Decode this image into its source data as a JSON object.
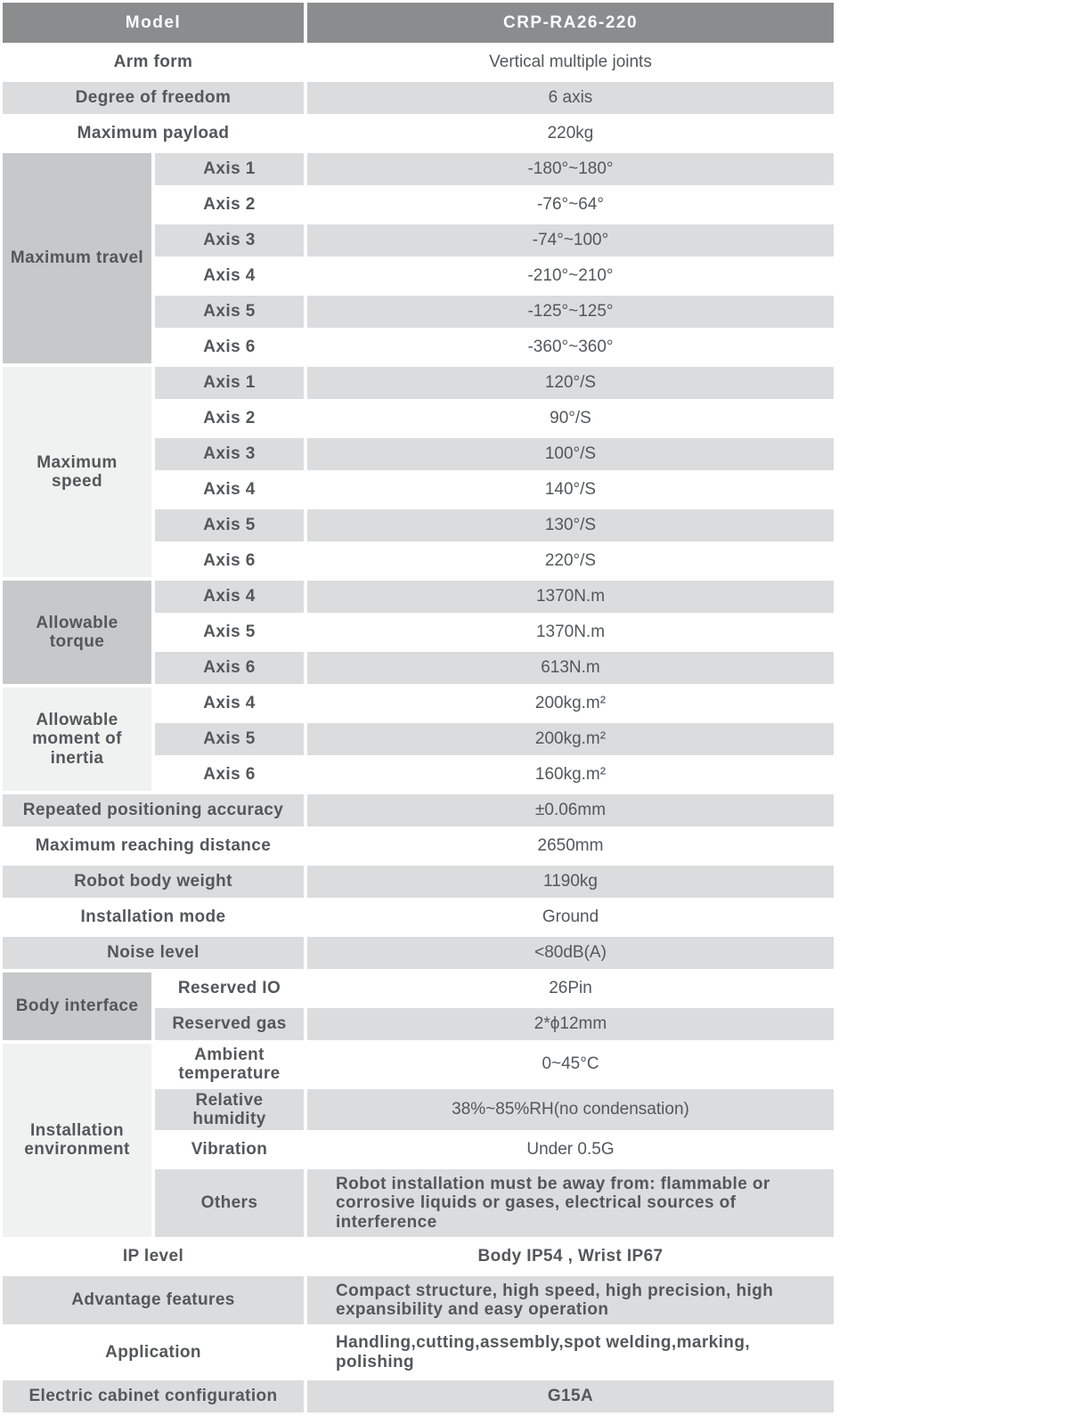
{
  "colors": {
    "header_bg": "#8a8c8e",
    "header_text": "#ffffff",
    "row_gray": "#dbdcdd",
    "row_white": "#ffffff",
    "group_cell_dark": "#c6c8ca",
    "group_cell_light": "#f0f1f1",
    "text": "#54575a"
  },
  "model_row": {
    "label": "Model",
    "value": "CRP-RA26-220"
  },
  "simple_rows": [
    {
      "label": "Arm form",
      "value": "Vertical multiple joints"
    },
    {
      "label": "Degree of freedom",
      "value": "6 axis"
    },
    {
      "label": "Maximum payload",
      "value": "220kg"
    },
    {
      "label": "Repeated positioning accuracy",
      "value": "±0.06mm"
    },
    {
      "label": "Maximum reaching distance",
      "value": "2650mm"
    },
    {
      "label": "Robot body weight",
      "value": "1190kg"
    },
    {
      "label": "Installation mode",
      "value": "Ground"
    },
    {
      "label": "Noise level",
      "value": "<80dB(A)"
    },
    {
      "label": "IP level",
      "value": "Body IP54 , Wrist IP67"
    },
    {
      "label": "Advantage features",
      "value": "Compact structure, high speed, high precision, high expansibility and easy operation"
    },
    {
      "label": "Application",
      "value": "Handling,cutting,assembly,spot welding,marking, polishing"
    },
    {
      "label": "Electric cabinet configuration",
      "value": "G15A"
    }
  ],
  "groups": [
    {
      "label": "Maximum travel",
      "rows": [
        {
          "sub": "Axis 1",
          "value": "-180°~180°"
        },
        {
          "sub": "Axis 2",
          "value": "-76°~64°"
        },
        {
          "sub": "Axis 3",
          "value": "-74°~100°"
        },
        {
          "sub": "Axis 4",
          "value": "-210°~210°"
        },
        {
          "sub": "Axis 5",
          "value": "-125°~125°"
        },
        {
          "sub": "Axis 6",
          "value": "-360°~360°"
        }
      ]
    },
    {
      "label": "Maximum speed",
      "rows": [
        {
          "sub": "Axis 1",
          "value": "120°/S"
        },
        {
          "sub": "Axis 2",
          "value": "90°/S"
        },
        {
          "sub": "Axis 3",
          "value": "100°/S"
        },
        {
          "sub": "Axis 4",
          "value": "140°/S"
        },
        {
          "sub": "Axis 5",
          "value": "130°/S"
        },
        {
          "sub": "Axis 6",
          "value": "220°/S"
        }
      ]
    },
    {
      "label": "Allowable torque",
      "rows": [
        {
          "sub": "Axis 4",
          "value": "1370N.m"
        },
        {
          "sub": "Axis 5",
          "value": "1370N.m"
        },
        {
          "sub": "Axis 6",
          "value": "613N.m"
        }
      ]
    },
    {
      "label": "Allowable moment of inertia",
      "rows": [
        {
          "sub": "Axis 4",
          "value": "200kg.m²"
        },
        {
          "sub": "Axis 5",
          "value": "200kg.m²"
        },
        {
          "sub": "Axis 6",
          "value": "160kg.m²"
        }
      ]
    },
    {
      "label": "Body interface",
      "rows": [
        {
          "sub": "Reserved IO",
          "value": "26Pin"
        },
        {
          "sub": "Reserved gas",
          "value": "2*ϕ12mm"
        }
      ]
    },
    {
      "label": "Installation environment",
      "rows": [
        {
          "sub": "Ambient temperature",
          "value": "0~45°C"
        },
        {
          "sub": "Relative humidity",
          "value": "38%~85%RH(no condensation)"
        },
        {
          "sub": "Vibration",
          "value": "Under 0.5G"
        },
        {
          "sub": "Others",
          "value": "Robot installation must be away from: flammable or corrosive liquids or gases, electrical sources of interference"
        }
      ]
    }
  ]
}
